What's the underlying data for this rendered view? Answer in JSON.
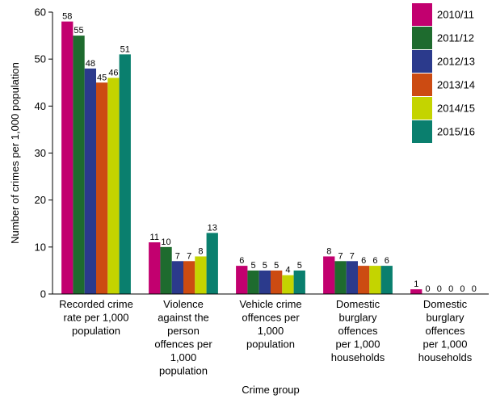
{
  "chart_data": {
    "type": "bar",
    "xlabel": "Crime group",
    "ylabel": "Number of crimes per 1,000 population",
    "ylim": [
      0,
      60
    ],
    "yticks": [
      0,
      10,
      20,
      30,
      40,
      50,
      60
    ],
    "grid": false,
    "legend_position": "top-right",
    "categories": [
      [
        "Recorded crime",
        "rate per 1,000",
        "population"
      ],
      [
        "Violence",
        "against the",
        "person",
        "offences per",
        "1,000",
        "population"
      ],
      [
        "Vehicle crime",
        "offences per",
        "1,000",
        "population"
      ],
      [
        "Domestic",
        "burglary",
        "offences",
        "per 1,000",
        "households"
      ],
      [
        "Domestic",
        "burglary",
        "offences",
        "per 1,000",
        "households"
      ]
    ],
    "series": [
      {
        "name": "2010/11",
        "color": "#c2006f",
        "values": [
          58,
          11,
          6,
          8,
          1
        ]
      },
      {
        "name": "2011/12",
        "color": "#1e6b2e",
        "values": [
          55,
          10,
          5,
          7,
          0
        ]
      },
      {
        "name": "2012/13",
        "color": "#2b3a8c",
        "values": [
          48,
          7,
          5,
          7,
          0
        ]
      },
      {
        "name": "2013/14",
        "color": "#cc4b12",
        "values": [
          45,
          7,
          5,
          6,
          0
        ]
      },
      {
        "name": "2014/15",
        "color": "#c4d400",
        "values": [
          46,
          8,
          4,
          6,
          0
        ]
      },
      {
        "name": "2015/16",
        "color": "#0a7f6e",
        "values": [
          51,
          13,
          5,
          6,
          0
        ]
      }
    ]
  }
}
